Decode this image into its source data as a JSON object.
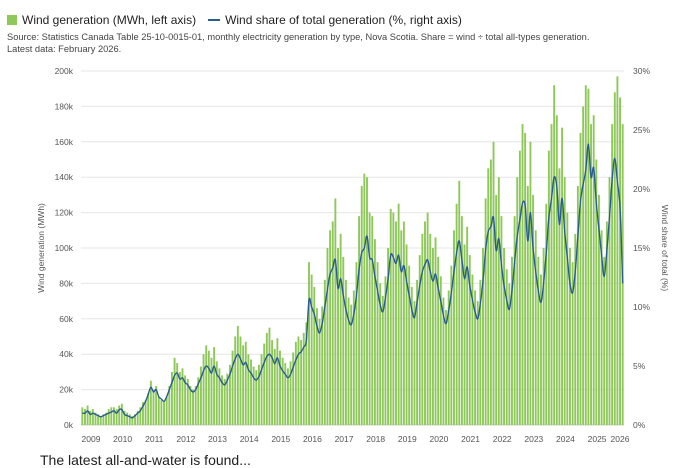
{
  "colors": {
    "bar": "#8fc85a",
    "line": "#2a5d8f",
    "grid": "#e6e6e6",
    "axis": "#cfcfcf"
  },
  "legend": {
    "bars": "Wind generation (MWh, left axis)",
    "line": "Wind share of total generation (%, right axis)"
  },
  "source_lines": [
    "Source: Statistics Canada Table 25-10-0015-01, monthly electricity generation by type, Nova Scotia. Share = wind ÷ total all-types generation.",
    "Latest data: February 2026."
  ],
  "footer_note": "The latest all-and-water is found...",
  "chart_data": {
    "type": "bar+line",
    "start": "2009-01",
    "y_left": {
      "label": "Wind generation (MWh)",
      "range": [
        0,
        200000
      ],
      "ticks": [
        0,
        20000,
        40000,
        60000,
        80000,
        100000,
        120000,
        140000,
        160000,
        180000,
        200000
      ],
      "tick_labels": [
        "0k",
        "20k",
        "40k",
        "60k",
        "80k",
        "100k",
        "120k",
        "140k",
        "160k",
        "180k",
        "200k"
      ]
    },
    "y_right": {
      "label": "Wind share of total (%)",
      "range": [
        0,
        30
      ],
      "ticks": [
        0,
        5,
        10,
        15,
        20,
        25,
        30
      ],
      "tick_labels": [
        "0%",
        "5%",
        "10%",
        "15%",
        "20%",
        "25%",
        "30%"
      ]
    },
    "x_tick_labels": [
      "2009",
      "2010",
      "2011",
      "2012",
      "2013",
      "2014",
      "2015",
      "2016",
      "2017",
      "2018",
      "2019",
      "2020",
      "2021",
      "2022",
      "2023",
      "2024",
      "2025",
      "2026"
    ],
    "wind_mwh": [
      10000,
      9000,
      11000,
      8000,
      9000,
      7000,
      6000,
      5000,
      6000,
      7000,
      9000,
      10000,
      10000,
      9000,
      11000,
      12000,
      8000,
      7000,
      6000,
      5000,
      6000,
      8000,
      10000,
      13000,
      14000,
      18000,
      25000,
      20000,
      22000,
      16000,
      14000,
      13000,
      16000,
      22000,
      30000,
      38000,
      35000,
      30000,
      32000,
      28000,
      26000,
      22000,
      20000,
      22000,
      27000,
      33000,
      40000,
      45000,
      42000,
      38000,
      44000,
      36000,
      32000,
      28000,
      26000,
      29000,
      34000,
      42000,
      50000,
      56000,
      50000,
      45000,
      47000,
      40000,
      37000,
      33000,
      31000,
      34000,
      40000,
      46000,
      52000,
      55000,
      48000,
      43000,
      49000,
      42000,
      38000,
      35000,
      32000,
      36000,
      41000,
      47000,
      50000,
      48000,
      52000,
      58000,
      92000,
      85000,
      78000,
      66000,
      60000,
      67000,
      82000,
      100000,
      110000,
      115000,
      128000,
      100000,
      108000,
      95000,
      82000,
      72000,
      68000,
      76000,
      92000,
      118000,
      135000,
      142000,
      140000,
      120000,
      118000,
      105000,
      92000,
      80000,
      73000,
      84000,
      100000,
      122000,
      120000,
      115000,
      125000,
      110000,
      115000,
      102000,
      90000,
      78000,
      70000,
      82000,
      96000,
      108000,
      115000,
      120000,
      108000,
      100000,
      106000,
      95000,
      84000,
      72000,
      65000,
      76000,
      90000,
      110000,
      125000,
      138000,
      118000,
      102000,
      112000,
      96000,
      85000,
      76000,
      70000,
      82000,
      100000,
      128000,
      145000,
      150000,
      160000,
      130000,
      140000,
      118000,
      100000,
      88000,
      80000,
      95000,
      118000,
      140000,
      155000,
      170000,
      165000,
      135000,
      160000,
      130000,
      110000,
      95000,
      85000,
      100000,
      125000,
      155000,
      170000,
      192000,
      175000,
      145000,
      168000,
      140000,
      120000,
      100000,
      92000,
      108000,
      135000,
      165000,
      180000,
      192000,
      190000,
      170000,
      175000,
      150000,
      130000,
      110000,
      95000,
      115000,
      140000,
      170000,
      188000,
      197000,
      185000,
      170000
    ],
    "wind_share_pct": [
      1.0,
      1.0,
      1.2,
      0.9,
      1.0,
      0.9,
      0.8,
      0.7,
      0.8,
      0.9,
      1.0,
      1.1,
      1.2,
      1.0,
      1.3,
      1.3,
      0.9,
      0.8,
      0.7,
      0.6,
      0.8,
      1.0,
      1.2,
      1.6,
      2.0,
      2.6,
      3.2,
      2.8,
      3.0,
      2.4,
      2.2,
      2.0,
      2.4,
      3.0,
      3.6,
      4.2,
      4.4,
      3.9,
      4.0,
      3.6,
      3.4,
      3.0,
      2.8,
      3.0,
      3.5,
      4.0,
      4.6,
      5.0,
      4.8,
      4.4,
      5.0,
      4.3,
      4.0,
      3.6,
      3.4,
      3.8,
      4.3,
      5.0,
      5.6,
      6.0,
      5.6,
      5.1,
      5.3,
      4.7,
      4.4,
      4.0,
      3.8,
      4.1,
      4.7,
      5.3,
      5.8,
      6.0,
      5.7,
      5.2,
      5.7,
      5.0,
      4.6,
      4.3,
      4.0,
      4.3,
      4.9,
      5.5,
      6.0,
      6.2,
      6.6,
      7.2,
      10.6,
      10.0,
      9.4,
      8.4,
      7.8,
      8.6,
      10.0,
      11.5,
      12.8,
      13.3,
      14.0,
      11.6,
      12.4,
      11.0,
      9.8,
      8.9,
      8.5,
      9.4,
      11.0,
      13.2,
      14.6,
      15.0,
      16.0,
      14.2,
      14.0,
      12.6,
      11.4,
      10.2,
      9.6,
      10.8,
      12.4,
      14.4,
      14.2,
      13.7,
      14.4,
      13.0,
      13.5,
      12.2,
      11.0,
      9.8,
      9.1,
      10.4,
      11.8,
      13.0,
      13.6,
      14.0,
      13.0,
      12.2,
      12.8,
      11.6,
      10.5,
      9.3,
      8.6,
      9.7,
      11.2,
      13.0,
      14.6,
      15.6,
      14.0,
      12.4,
      13.4,
      11.8,
      10.6,
      9.6,
      9.0,
      10.3,
      12.2,
      14.8,
      16.4,
      16.8,
      17.6,
      14.8,
      15.8,
      13.6,
      11.8,
      10.6,
      9.8,
      11.4,
      13.8,
      16.0,
      17.4,
      18.8,
      18.6,
      15.6,
      18.0,
      15.0,
      13.0,
      11.4,
      10.4,
      12.0,
      14.6,
      17.6,
      19.2,
      21.0,
      20.2,
      17.0,
      19.2,
      16.4,
      14.2,
      12.0,
      11.2,
      13.0,
      16.0,
      19.0,
      20.4,
      21.6,
      23.8,
      21.0,
      21.8,
      18.8,
      16.6,
      14.4,
      12.6,
      14.8,
      17.6,
      20.8,
      22.6,
      20.6,
      18.4,
      12.0
    ]
  }
}
